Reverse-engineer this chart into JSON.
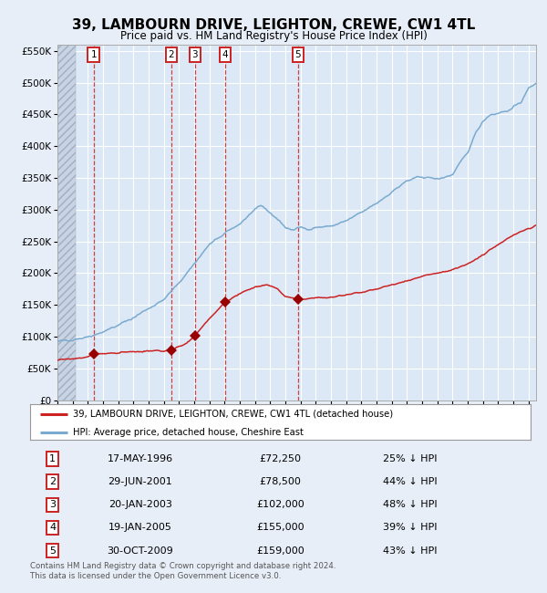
{
  "title": "39, LAMBOURN DRIVE, LEIGHTON, CREWE, CW1 4TL",
  "subtitle": "Price paid vs. HM Land Registry's House Price Index (HPI)",
  "title_fontsize": 11,
  "subtitle_fontsize": 9,
  "bg_color": "#e8eef8",
  "plot_bg_color": "#dce8f5",
  "grid_color": "#ffffff",
  "sales": [
    {
      "num": 1,
      "date_x": 1996.38,
      "price": 72250
    },
    {
      "num": 2,
      "date_x": 2001.49,
      "price": 78500
    },
    {
      "num": 3,
      "date_x": 2003.05,
      "price": 102000
    },
    {
      "num": 4,
      "date_x": 2005.05,
      "price": 155000
    },
    {
      "num": 5,
      "date_x": 2009.83,
      "price": 159000
    }
  ],
  "legend_line1": "39, LAMBOURN DRIVE, LEIGHTON, CREWE, CW1 4TL (detached house)",
  "legend_line2": "HPI: Average price, detached house, Cheshire East",
  "table_rows": [
    {
      "num": 1,
      "date": "17-MAY-1996",
      "price": "£72,250",
      "pct": "25% ↓ HPI"
    },
    {
      "num": 2,
      "date": "29-JUN-2001",
      "price": "£78,500",
      "pct": "44% ↓ HPI"
    },
    {
      "num": 3,
      "date": "20-JAN-2003",
      "price": "£102,000",
      "pct": "48% ↓ HPI"
    },
    {
      "num": 4,
      "date": "19-JAN-2005",
      "price": "£155,000",
      "pct": "39% ↓ HPI"
    },
    {
      "num": 5,
      "date": "30-OCT-2009",
      "price": "£159,000",
      "pct": "43% ↓ HPI"
    }
  ],
  "footer": "Contains HM Land Registry data © Crown copyright and database right 2024.\nThis data is licensed under the Open Government Licence v3.0.",
  "xmin": 1994.0,
  "xmax": 2025.5,
  "ymin": 0,
  "ymax": 560000,
  "yticks": [
    0,
    50000,
    100000,
    150000,
    200000,
    250000,
    300000,
    350000,
    400000,
    450000,
    500000,
    550000
  ],
  "ytick_labels": [
    "£0",
    "£50K",
    "£100K",
    "£150K",
    "£200K",
    "£250K",
    "£300K",
    "£350K",
    "£400K",
    "£450K",
    "£500K",
    "£550K"
  ],
  "red_line_color": "#cc2222",
  "blue_line_color": "#7aaad0",
  "vline_color": "#cc2222",
  "marker_color": "#990000",
  "box_color": "#cc2222",
  "hpi_anchors_x": [
    1994.0,
    1995.0,
    1996.0,
    1997.0,
    1998.0,
    1999.0,
    2000.0,
    2001.0,
    2002.0,
    2003.0,
    2004.0,
    2005.0,
    2006.0,
    2007.0,
    2007.5,
    2008.0,
    2008.5,
    2009.0,
    2009.5,
    2010.0,
    2010.5,
    2011.0,
    2012.0,
    2013.0,
    2014.0,
    2015.0,
    2016.0,
    2017.0,
    2018.0,
    2019.0,
    2020.0,
    2021.0,
    2021.5,
    2022.0,
    2022.5,
    2023.0,
    2023.5,
    2024.0,
    2024.5,
    2025.0,
    2025.5
  ],
  "hpi_anchors_y": [
    92000,
    96000,
    100000,
    108000,
    118000,
    130000,
    145000,
    158000,
    185000,
    215000,
    245000,
    262000,
    278000,
    300000,
    305000,
    295000,
    285000,
    272000,
    268000,
    272000,
    270000,
    272000,
    274000,
    282000,
    295000,
    310000,
    328000,
    345000,
    352000,
    348000,
    355000,
    390000,
    420000,
    440000,
    450000,
    452000,
    455000,
    460000,
    470000,
    490000,
    500000
  ],
  "price_anchors_x": [
    1994.0,
    1996.0,
    1996.38,
    1998.0,
    2001.0,
    2001.49,
    2002.5,
    2003.05,
    2004.0,
    2005.05,
    2006.0,
    2007.0,
    2007.8,
    2008.5,
    2009.0,
    2009.83,
    2011.0,
    2012.0,
    2013.0,
    2014.0,
    2015.0,
    2016.0,
    2017.0,
    2018.0,
    2019.0,
    2020.0,
    2021.0,
    2022.0,
    2023.0,
    2024.0,
    2025.0,
    2025.5
  ],
  "price_anchors_y": [
    63000,
    68000,
    72250,
    75000,
    78000,
    78500,
    90000,
    102000,
    128000,
    155000,
    168000,
    178000,
    182000,
    175000,
    163000,
    159000,
    161000,
    163000,
    166000,
    170000,
    175000,
    182000,
    188000,
    195000,
    200000,
    205000,
    215000,
    228000,
    245000,
    260000,
    270000,
    275000
  ]
}
